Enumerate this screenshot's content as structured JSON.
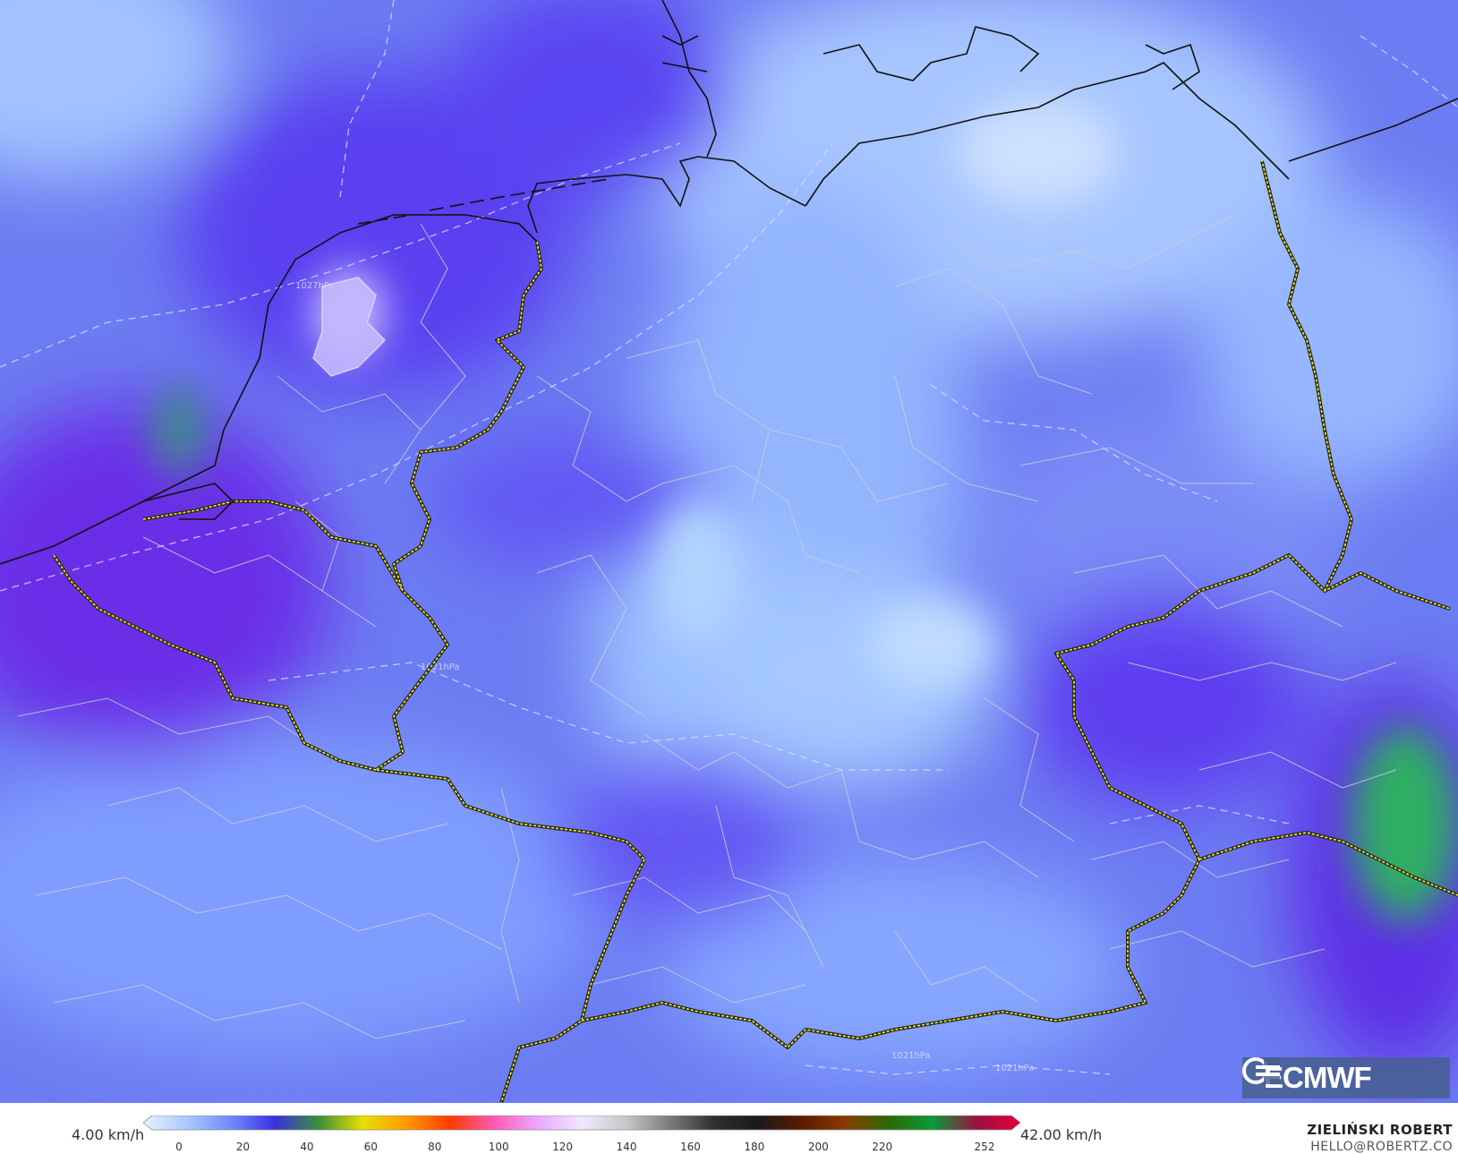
{
  "map": {
    "variable_unit": "km/h",
    "isobar_labels": [
      "1027hPa",
      "1021hPa",
      "1021hPa",
      "1021hPa"
    ]
  },
  "colorbar": {
    "min_label": "4.00 km/h",
    "max_label": "42.00 km/h",
    "ticks": [
      "0",
      "20",
      "40",
      "60",
      "80",
      "100",
      "120",
      "140",
      "160",
      "180",
      "200",
      "220",
      "252"
    ],
    "tick_values": [
      0,
      20,
      40,
      60,
      80,
      100,
      120,
      140,
      160,
      180,
      200,
      220,
      252
    ],
    "max_value": 252,
    "colors": [
      "#e8f2ff",
      "#a9c9ff",
      "#6f8bff",
      "#3b2fe0",
      "#3a8f3a",
      "#e7e000",
      "#ff9a00",
      "#ff3a00",
      "#ff5ab4",
      "#e9a8ff",
      "#f0e8ff",
      "#c8c8c8",
      "#7c7c7c",
      "#303030",
      "#1a1a1a",
      "#5a1a00",
      "#8a3a00",
      "#2a6a00",
      "#0a9a3a",
      "#9a1040",
      "#e6003c"
    ]
  },
  "branding": {
    "logo_text": "ECMWF",
    "author_name": "ZIELIŃSKI ROBERT",
    "author_email": "HELLO@ROBERTZ.CO"
  }
}
